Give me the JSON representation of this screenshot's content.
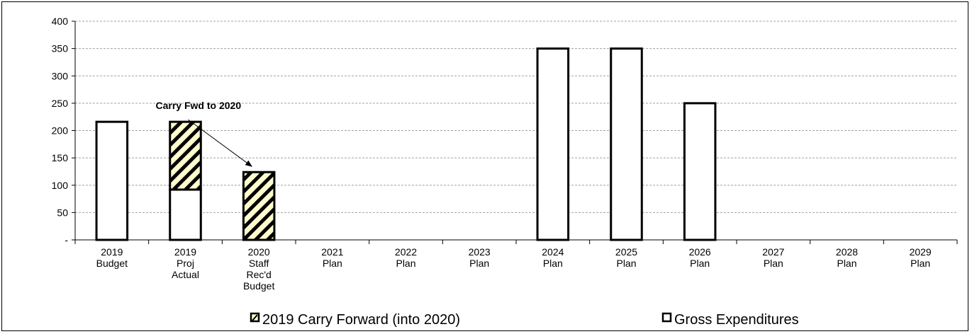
{
  "chart_data": {
    "type": "bar",
    "categories": [
      [
        "2019",
        "Budget"
      ],
      [
        "2019",
        "Proj",
        "Actual"
      ],
      [
        "2020",
        "Staff",
        "Rec'd",
        "Budget"
      ],
      [
        "2021",
        "Plan"
      ],
      [
        "2022",
        "Plan"
      ],
      [
        "2023",
        "Plan"
      ],
      [
        "2024",
        "Plan"
      ],
      [
        "2025",
        "Plan"
      ],
      [
        "2026",
        "Plan"
      ],
      [
        "2027",
        "Plan"
      ],
      [
        "2028",
        "Plan"
      ],
      [
        "2029",
        "Plan"
      ]
    ],
    "series": [
      {
        "name": "Gross Expenditures",
        "pattern": "none",
        "color": "#ffffff",
        "values": [
          216,
          92,
          0,
          0,
          0,
          0,
          350,
          350,
          250,
          0,
          0,
          0
        ]
      },
      {
        "name": "2019 Carry Forward (into 2020)",
        "pattern": "hatch",
        "color": "#fffbcc",
        "values": [
          0,
          124,
          124,
          0,
          0,
          0,
          0,
          0,
          0,
          0,
          0,
          0
        ]
      }
    ],
    "stacked": true,
    "ylim": [
      0,
      400
    ],
    "yticks": [
      0,
      50,
      100,
      150,
      200,
      250,
      300,
      350,
      400
    ],
    "ytick_labels": [
      "-",
      "50",
      "100",
      "150",
      "200",
      "250",
      "300",
      "350",
      "400"
    ],
    "grid": true,
    "legend_position": "bottom",
    "legend": [
      "2019 Carry Forward (into 2020)",
      "Gross Expenditures"
    ],
    "annotation": {
      "text": "Carry Fwd to 2020",
      "from_category": 1,
      "to_category": 2
    }
  }
}
